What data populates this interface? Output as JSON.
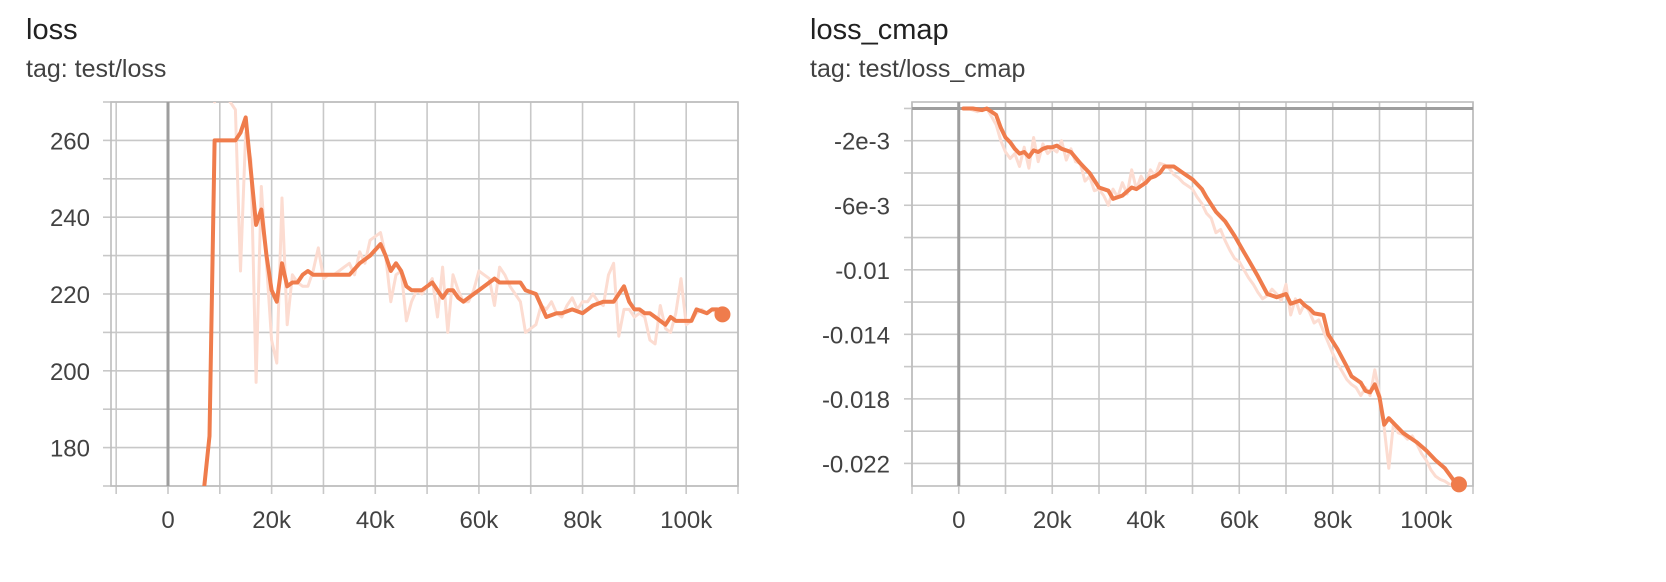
{
  "colors": {
    "series": "#ef7c4c",
    "raw_series": "#fcdcd1",
    "grid": "#c8c8c8",
    "zero_axis": "#9e9e9e"
  },
  "chart_data": [
    {
      "type": "line",
      "title": "loss",
      "subtitle": "tag: test/loss",
      "xlabel": "",
      "ylabel": "",
      "xlim": [
        -11000,
        110000
      ],
      "ylim": [
        170,
        270
      ],
      "x_ticks": [
        0,
        20000,
        40000,
        60000,
        80000,
        100000
      ],
      "x_tick_labels": [
        "0",
        "20k",
        "40k",
        "60k",
        "80k",
        "100k"
      ],
      "y_ticks": [
        180,
        200,
        220,
        240,
        260
      ],
      "y_tick_labels": [
        "180",
        "200",
        "220",
        "240",
        "260"
      ],
      "grid": true,
      "series": [
        {
          "role": "smoothed",
          "x": [
            7000,
            8000,
            9000,
            13000,
            14000,
            15000,
            17000,
            18000,
            19000,
            20000,
            21000,
            22000,
            23000,
            24000,
            25000,
            26000,
            27000,
            28000,
            29000,
            30000,
            31000,
            32000,
            33000,
            35000,
            37000,
            39000,
            41000,
            42000,
            43000,
            44000,
            45000,
            46000,
            47000,
            48000,
            49000,
            51000,
            52000,
            53000,
            54000,
            55000,
            56000,
            57000,
            58000,
            59000,
            60000,
            62000,
            63000,
            64000,
            66000,
            68000,
            69000,
            71000,
            73000,
            75000,
            76000,
            78000,
            80000,
            81000,
            82000,
            84000,
            86000,
            87000,
            88000,
            89000,
            90000,
            91000,
            92000,
            93000,
            94000,
            95000,
            96000,
            97000,
            98000,
            99000,
            100000,
            101000,
            102000,
            104000,
            105000,
            106000,
            107000
          ],
          "y": [
            170,
            183,
            260,
            260,
            262,
            266,
            238,
            242,
            230,
            221,
            218,
            228,
            222,
            223,
            223,
            225,
            226,
            225,
            225,
            225,
            225,
            225,
            225,
            225,
            228,
            230,
            233,
            230,
            226,
            228,
            226,
            222,
            221,
            221,
            221,
            223,
            221,
            219,
            221,
            221,
            219,
            218,
            219,
            220,
            221,
            223,
            224,
            223,
            223,
            223,
            221,
            220,
            214,
            215,
            215,
            216,
            215,
            216,
            217,
            218,
            218,
            220,
            222,
            218,
            216,
            216,
            215,
            215,
            214,
            213,
            212,
            214,
            213,
            213,
            213,
            213,
            216,
            215,
            216,
            216,
            215
          ],
          "end_marker": {
            "x": 107000,
            "y": 214.7
          }
        },
        {
          "role": "raw",
          "x": [
            9000,
            10000,
            11000,
            12000,
            13000,
            14000,
            15000,
            16000,
            17000,
            18000,
            19000,
            20000,
            21000,
            22000,
            23000,
            24000,
            25000,
            26000,
            27000,
            28000,
            29000,
            30000,
            31000,
            32000,
            33000,
            34000,
            35000,
            36000,
            37000,
            38000,
            39000,
            40000,
            41000,
            42000,
            43000,
            44000,
            45000,
            46000,
            47000,
            48000,
            49000,
            50000,
            51000,
            52000,
            53000,
            54000,
            55000,
            56000,
            57000,
            58000,
            59000,
            60000,
            61000,
            62000,
            63000,
            64000,
            65000,
            66000,
            67000,
            68000,
            69000,
            70000,
            71000,
            72000,
            73000,
            74000,
            75000,
            76000,
            77000,
            78000,
            79000,
            80000,
            81000,
            82000,
            83000,
            84000,
            85000,
            86000,
            87000,
            88000,
            89000,
            90000,
            91000,
            92000,
            93000,
            94000,
            95000,
            96000,
            97000,
            98000,
            99000,
            100000,
            101000,
            102000,
            103000,
            104000,
            105000,
            106000,
            107000
          ],
          "y": [
            270,
            275,
            272,
            270,
            268,
            226,
            262,
            255,
            197,
            248,
            228,
            208,
            202,
            245,
            212,
            225,
            223,
            222,
            222,
            226,
            232,
            224,
            225,
            225,
            226,
            227,
            228,
            225,
            231,
            228,
            234,
            235,
            236,
            230,
            218,
            225,
            226,
            213,
            218,
            221,
            220,
            222,
            224,
            214,
            227,
            210,
            225,
            221,
            218,
            218,
            221,
            226,
            225,
            224,
            217,
            227,
            225,
            222,
            220,
            218,
            210,
            211,
            212,
            217,
            216,
            218,
            215,
            214,
            217,
            219,
            216,
            218,
            218,
            220,
            218,
            217,
            225,
            228,
            209,
            216,
            216,
            214,
            215,
            214,
            208,
            207,
            217,
            211,
            210,
            215,
            224,
            212,
            213,
            215,
            216,
            215,
            216,
            215,
            215
          ]
        }
      ]
    },
    {
      "type": "line",
      "title": "loss_cmap",
      "subtitle": "tag: test/loss_cmap",
      "xlabel": "",
      "ylabel": "",
      "xlim": [
        -10000,
        110000
      ],
      "ylim": [
        -0.0234,
        0.0004
      ],
      "x_ticks": [
        0,
        20000,
        40000,
        60000,
        80000,
        100000
      ],
      "x_tick_labels": [
        "0",
        "20k",
        "40k",
        "60k",
        "80k",
        "100k"
      ],
      "y_ticks": [
        -0.002,
        -0.006,
        -0.01,
        -0.014,
        -0.018,
        -0.022
      ],
      "y_tick_labels": [
        "-2e-3",
        "-6e-3",
        "-0.01",
        "-0.014",
        "-0.018",
        "-0.022"
      ],
      "grid": true,
      "series": [
        {
          "role": "smoothed",
          "x": [
            1000,
            3000,
            5000,
            6000,
            8000,
            9000,
            10000,
            11000,
            12000,
            13000,
            14000,
            15000,
            16000,
            17000,
            18000,
            19000,
            20000,
            21000,
            22000,
            23000,
            24000,
            26000,
            27000,
            28000,
            30000,
            32000,
            33000,
            35000,
            37000,
            38000,
            39000,
            40000,
            41000,
            42000,
            43000,
            44000,
            46000,
            47000,
            48000,
            49000,
            50000,
            52000,
            53000,
            55000,
            57000,
            59000,
            61000,
            62000,
            64000,
            66000,
            68000,
            70000,
            71000,
            72000,
            73000,
            74000,
            75000,
            76000,
            78000,
            79000,
            81000,
            83000,
            84000,
            86000,
            87000,
            88000,
            89000,
            90000,
            91000,
            92000,
            94000,
            95000,
            96000,
            98000,
            100000,
            102000,
            104000,
            105000,
            106000,
            107000
          ],
          "y": [
            0.0,
            0.0,
            -0.0001,
            0.0,
            -0.0004,
            -0.0012,
            -0.0018,
            -0.0021,
            -0.0025,
            -0.0028,
            -0.0027,
            -0.003,
            -0.0026,
            -0.0027,
            -0.0025,
            -0.0024,
            -0.0024,
            -0.0023,
            -0.0025,
            -0.0026,
            -0.0027,
            -0.0034,
            -0.0037,
            -0.004,
            -0.0049,
            -0.0051,
            -0.0056,
            -0.0054,
            -0.0049,
            -0.005,
            -0.0048,
            -0.0046,
            -0.0043,
            -0.0042,
            -0.004,
            -0.0036,
            -0.0036,
            -0.0038,
            -0.004,
            -0.0042,
            -0.0044,
            -0.005,
            -0.0055,
            -0.0064,
            -0.007,
            -0.0079,
            -0.0089,
            -0.0094,
            -0.0104,
            -0.0115,
            -0.0117,
            -0.0115,
            -0.0121,
            -0.012,
            -0.0119,
            -0.0122,
            -0.0124,
            -0.0127,
            -0.0128,
            -0.014,
            -0.0149,
            -0.016,
            -0.0166,
            -0.017,
            -0.0175,
            -0.0176,
            -0.0171,
            -0.0179,
            -0.0196,
            -0.0192,
            -0.0198,
            -0.0201,
            -0.0203,
            -0.0207,
            -0.0212,
            -0.0218,
            -0.0223,
            -0.0227,
            -0.0231,
            -0.0233
          ],
          "end_marker": {
            "x": 107000,
            "y": -0.0233
          }
        },
        {
          "role": "raw",
          "x": [
            2000,
            4000,
            6000,
            7000,
            8000,
            9000,
            10000,
            11000,
            12000,
            13000,
            14000,
            15000,
            16000,
            17000,
            18000,
            19000,
            20000,
            21000,
            22000,
            23000,
            24000,
            25000,
            26000,
            27000,
            28000,
            29000,
            30000,
            31000,
            32000,
            33000,
            34000,
            35000,
            36000,
            37000,
            38000,
            39000,
            40000,
            41000,
            42000,
            43000,
            44000,
            45000,
            46000,
            47000,
            48000,
            49000,
            50000,
            51000,
            52000,
            53000,
            54000,
            55000,
            56000,
            57000,
            58000,
            59000,
            60000,
            61000,
            62000,
            63000,
            64000,
            65000,
            66000,
            67000,
            68000,
            69000,
            70000,
            71000,
            72000,
            73000,
            74000,
            75000,
            76000,
            77000,
            78000,
            79000,
            80000,
            81000,
            82000,
            83000,
            84000,
            85000,
            86000,
            87000,
            88000,
            89000,
            90000,
            91000,
            92000,
            93000,
            94000,
            95000,
            96000,
            97000,
            98000,
            99000,
            100000,
            101000,
            102000,
            103000,
            104000,
            105000,
            106000,
            107000
          ],
          "y": [
            0.0,
            -0.0002,
            0.0,
            -0.0005,
            -0.001,
            -0.002,
            -0.0027,
            -0.0031,
            -0.0028,
            -0.0036,
            -0.0024,
            -0.0037,
            -0.0018,
            -0.0033,
            -0.0022,
            -0.0028,
            -0.0025,
            -0.0027,
            -0.002,
            -0.0032,
            -0.0025,
            -0.0033,
            -0.0034,
            -0.0045,
            -0.0042,
            -0.0051,
            -0.005,
            -0.0054,
            -0.006,
            -0.005,
            -0.0055,
            -0.0046,
            -0.0053,
            -0.0038,
            -0.005,
            -0.0042,
            -0.0047,
            -0.0038,
            -0.0042,
            -0.0034,
            -0.0035,
            -0.0037,
            -0.0041,
            -0.0043,
            -0.0046,
            -0.0048,
            -0.005,
            -0.0055,
            -0.0059,
            -0.0065,
            -0.0068,
            -0.0077,
            -0.0075,
            -0.0082,
            -0.0088,
            -0.0093,
            -0.0095,
            -0.01,
            -0.0105,
            -0.0109,
            -0.0114,
            -0.0118,
            -0.0116,
            -0.0112,
            -0.0115,
            -0.0119,
            -0.0109,
            -0.0128,
            -0.0118,
            -0.0127,
            -0.0121,
            -0.0126,
            -0.0133,
            -0.0131,
            -0.0138,
            -0.0145,
            -0.0152,
            -0.0158,
            -0.0163,
            -0.0168,
            -0.0171,
            -0.0173,
            -0.0178,
            -0.0173,
            -0.0178,
            -0.0162,
            -0.0177,
            -0.0198,
            -0.0223,
            -0.0195,
            -0.0201,
            -0.0202,
            -0.0205,
            -0.0203,
            -0.0208,
            -0.0214,
            -0.0218,
            -0.0224,
            -0.0228,
            -0.023,
            -0.0231,
            -0.0233,
            -0.0234,
            -0.0233
          ]
        }
      ]
    }
  ]
}
